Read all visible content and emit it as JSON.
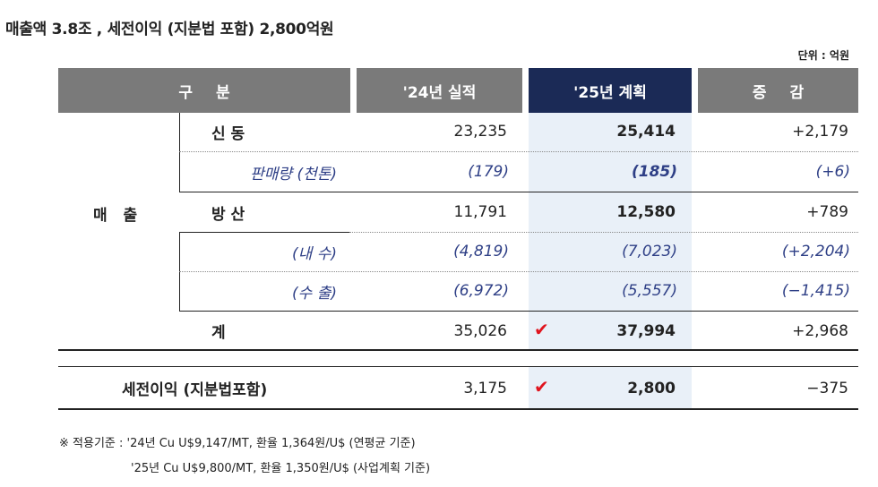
{
  "title": "매출액 3.8조 , 세전이익 (지분법 포함)  2,800억원",
  "unit": "단위 : 억원",
  "headers": {
    "category": "구분",
    "y24": "'24년 실적",
    "y25": "'25년 계획",
    "change": "증감"
  },
  "rows": {
    "group_label": "매 출",
    "shindong": {
      "label": "신 동",
      "v24": "23,235",
      "v25": "25,414",
      "chg": "+2,179"
    },
    "volume": {
      "label": "판매량 (천톤)",
      "v24": "(179)",
      "v25": "(185)",
      "chg": "(+6)"
    },
    "bangsan": {
      "label": "방 산",
      "v24": "11,791",
      "v25": "12,580",
      "chg": "+789"
    },
    "domestic": {
      "label": "(내  수)",
      "v24": "(4,819)",
      "v25": "(7,023)",
      "chg": "(+2,204)"
    },
    "export": {
      "label": "(수  출)",
      "v24": "(6,972)",
      "v25": "(5,557)",
      "chg": "(−1,415)"
    },
    "total": {
      "label": "계",
      "v24": "35,026",
      "v25": "37,994",
      "chg": "+2,968"
    },
    "pretax": {
      "label": "세전이익 (지분법포함)",
      "v24": "3,175",
      "v25": "2,800",
      "chg": "−375"
    }
  },
  "check_mark": "✔",
  "notes": {
    "line1": "※ 적용기준 : '24년 Cu U$9,147/MT, 환율 1,364원/U$ (연평균 기준)",
    "line2": "'25년 Cu U$9,800/MT, 환율 1,350원/U$ (사업계획 기준)"
  },
  "colors": {
    "header_gray": "#7a7a7a",
    "header_navy": "#1b2a56",
    "plan_bg": "#e9f0f8",
    "italic_text": "#2e3f86",
    "check": "#e0141e"
  }
}
